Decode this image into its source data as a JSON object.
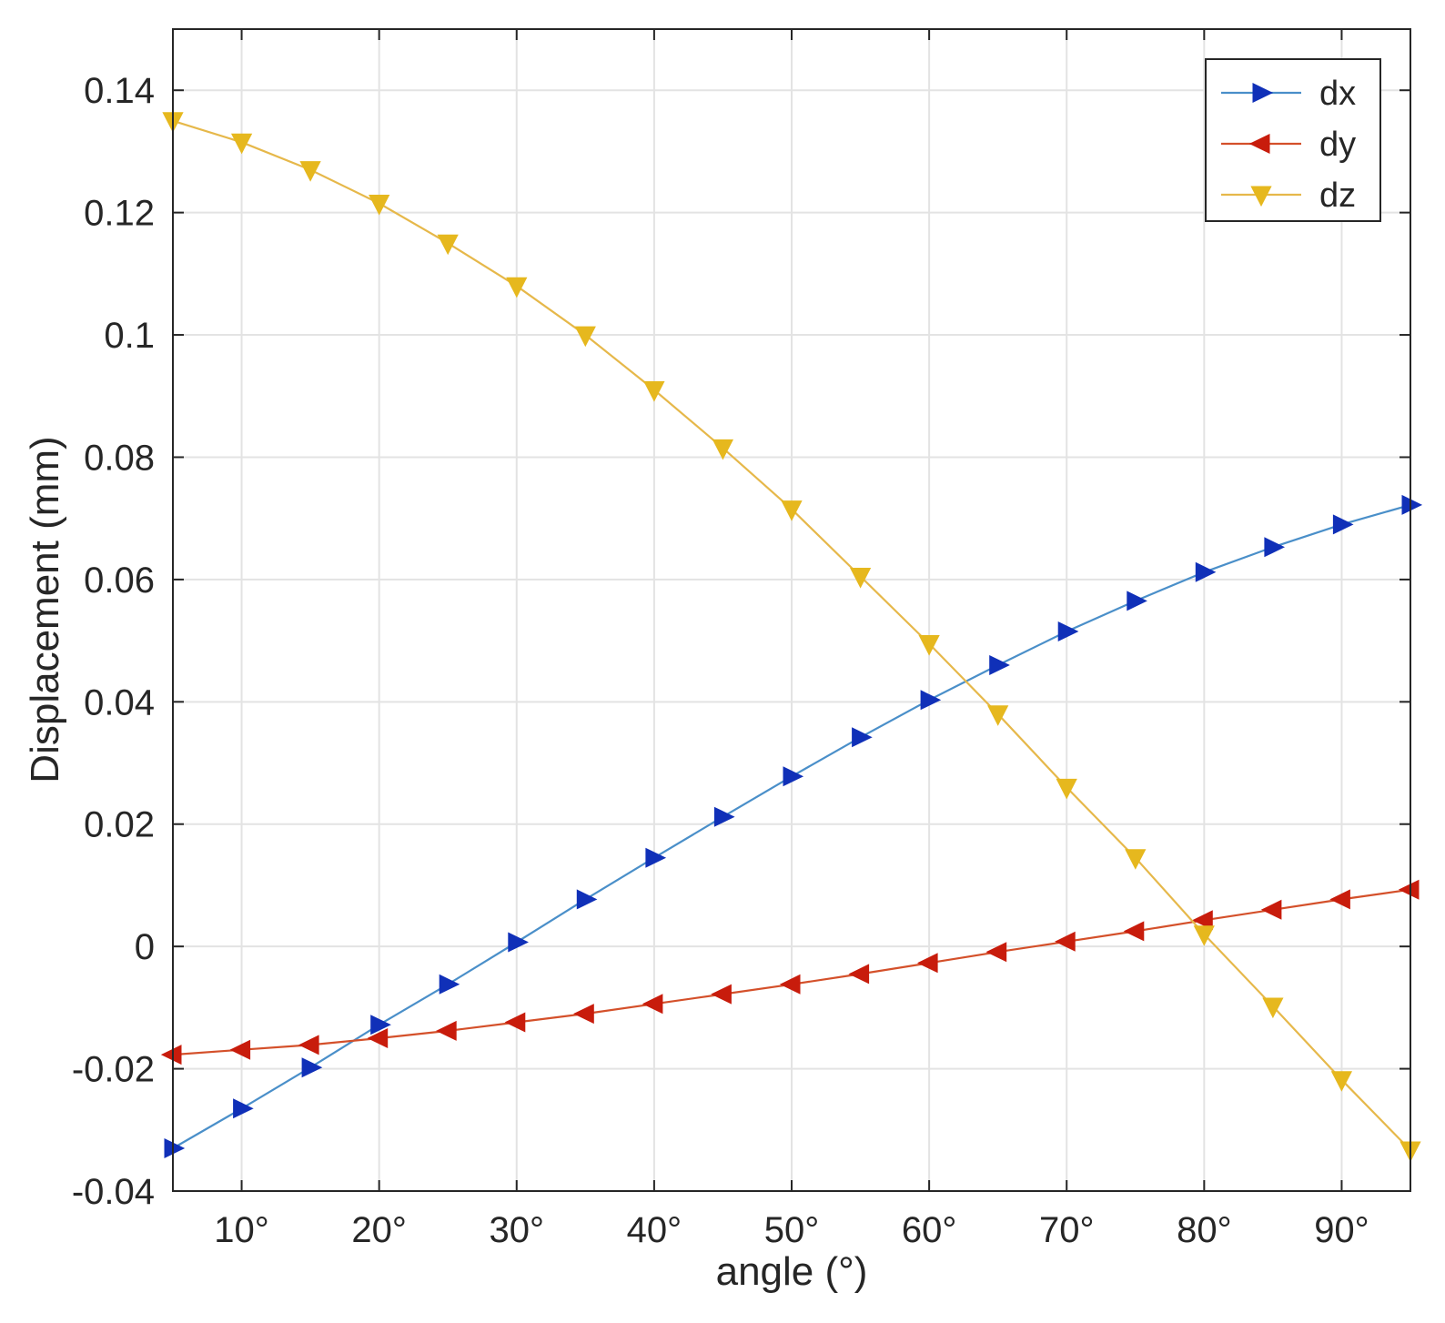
{
  "chart_data": {
    "type": "line",
    "title": "",
    "xlabel": "angle  (°)",
    "ylabel": "Displacement  (mm)",
    "xlim": [
      5,
      95
    ],
    "ylim": [
      -0.04,
      0.15
    ],
    "grid": true,
    "legend_position": "top-right",
    "x": [
      5,
      10,
      15,
      20,
      25,
      30,
      35,
      40,
      45,
      50,
      55,
      60,
      65,
      70,
      75,
      80,
      85,
      90,
      95
    ],
    "xticks": [
      10,
      20,
      30,
      40,
      50,
      60,
      70,
      80,
      90
    ],
    "xtick_labels": [
      "10°",
      "20°",
      "30°",
      "40°",
      "50°",
      "60°",
      "70°",
      "80°",
      "90°"
    ],
    "yticks": [
      -0.04,
      -0.02,
      0,
      0.02,
      0.04,
      0.06,
      0.08,
      0.1,
      0.12,
      0.14
    ],
    "ytick_labels": [
      "-0.04",
      "-0.02",
      "0",
      "0.02",
      "0.04",
      "0.06",
      "0.08",
      "0.1",
      "0.12",
      "0.14"
    ],
    "series": [
      {
        "name": "dx",
        "marker": "triangle-right",
        "line_color": "#4a8fc9",
        "marker_color": "#1030b8",
        "values": [
          -0.033,
          -0.0265,
          -0.0198,
          -0.0128,
          -0.0062,
          0.0007,
          0.0077,
          0.0145,
          0.0212,
          0.0278,
          0.0342,
          0.0403,
          0.046,
          0.0515,
          0.0565,
          0.0612,
          0.0653,
          0.069,
          0.0722
        ]
      },
      {
        "name": "dy",
        "marker": "triangle-left",
        "line_color": "#d4502a",
        "marker_color": "#c81c0c",
        "values": [
          -0.0177,
          -0.0169,
          -0.0161,
          -0.015,
          -0.0138,
          -0.0124,
          -0.011,
          -0.0094,
          -0.0078,
          -0.0062,
          -0.0045,
          -0.0027,
          -0.0009,
          0.0008,
          0.0025,
          0.0043,
          0.006,
          0.0077,
          0.0093
        ]
      },
      {
        "name": "dz",
        "marker": "triangle-down",
        "line_color": "#e6b84a",
        "marker_color": "#e6b81e",
        "values": [
          0.135,
          0.1315,
          0.127,
          0.1215,
          0.115,
          0.108,
          0.1,
          0.091,
          0.0815,
          0.0715,
          0.0605,
          0.0495,
          0.038,
          0.026,
          0.0145,
          0.002,
          -0.0098,
          -0.0218,
          -0.0333
        ]
      }
    ]
  }
}
